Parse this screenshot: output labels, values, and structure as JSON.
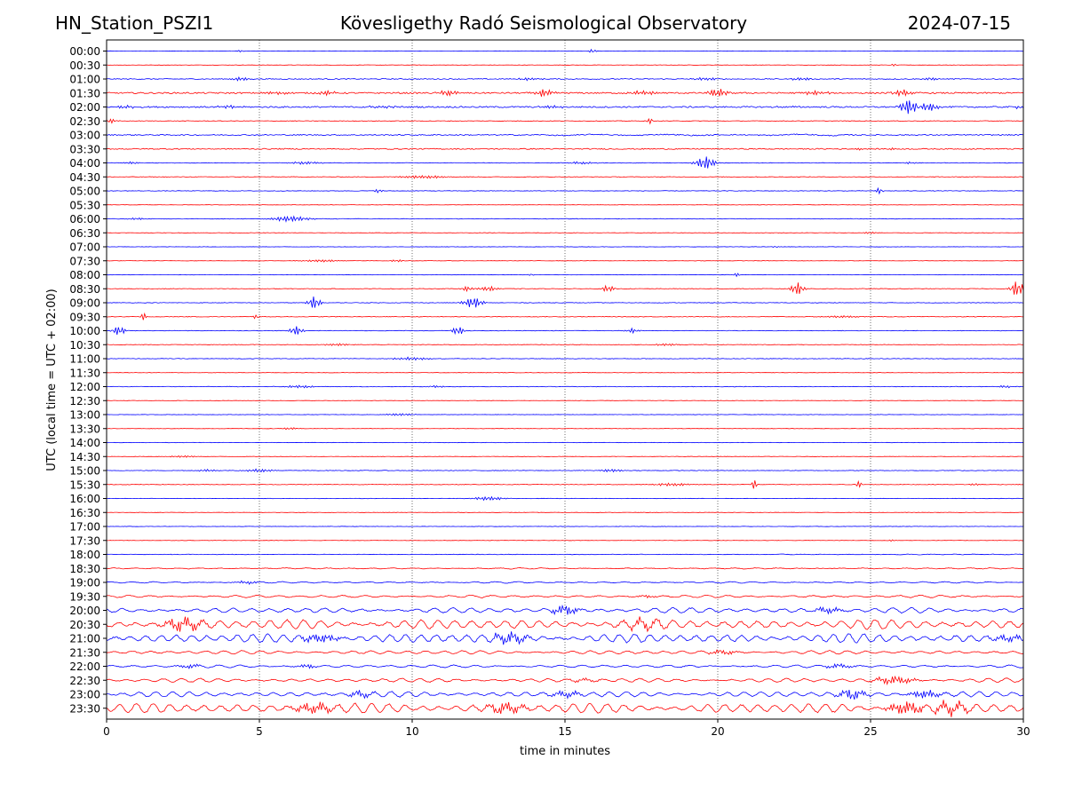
{
  "header": {
    "station": "HN_Station_PSZI1",
    "observatory": "Kövesligethy Radó Seismological Observatory",
    "date": "2024-07-15"
  },
  "chart_data": {
    "type": "line",
    "title": "Kövesligethy Radó Seismological Observatory",
    "xlabel": "time in minutes",
    "ylabel": "UTC (local time = UTC + 02:00)",
    "xlim": [
      0,
      30
    ],
    "x_ticks": [
      "0",
      "5",
      "10",
      "15",
      "20",
      "25",
      "30"
    ],
    "x_gridlines": [
      5,
      10,
      15,
      20,
      25
    ],
    "grid": "vertical dotted",
    "series_colors": [
      "#0000ff",
      "#ff0000"
    ],
    "rows": [
      {
        "label": "00:00",
        "noise": 0.2,
        "events": [
          [
            4.4,
            1.2,
            0.1
          ],
          [
            15.9,
            2.5,
            0.1
          ]
        ]
      },
      {
        "label": "00:30",
        "noise": 0.2,
        "events": [
          [
            25.8,
            1.5,
            0.1
          ]
        ]
      },
      {
        "label": "01:00",
        "noise": 0.5,
        "events": [
          [
            4.4,
            2.0,
            0.3
          ],
          [
            13.8,
            1.2,
            0.4
          ],
          [
            19.6,
            1.5,
            0.4
          ],
          [
            22.7,
            1.5,
            0.3
          ],
          [
            27.0,
            1.6,
            0.3
          ]
        ]
      },
      {
        "label": "01:30",
        "noise": 0.8,
        "events": [
          [
            5.5,
            1.5,
            0.4
          ],
          [
            7.2,
            2.0,
            0.3
          ],
          [
            11.2,
            3.0,
            0.3
          ],
          [
            14.3,
            4.0,
            0.3
          ],
          [
            17.5,
            2.0,
            0.5
          ],
          [
            20.0,
            4.5,
            0.3
          ],
          [
            23.2,
            2.0,
            0.4
          ],
          [
            26.1,
            3.5,
            0.3
          ]
        ]
      },
      {
        "label": "02:00",
        "noise": 0.8,
        "events": [
          [
            0.6,
            1.5,
            0.4
          ],
          [
            4.0,
            1.5,
            0.4
          ],
          [
            9.0,
            1.2,
            0.5
          ],
          [
            14.6,
            2.0,
            0.3
          ],
          [
            22.2,
            1.2,
            0.4
          ],
          [
            26.3,
            9.0,
            0.3
          ],
          [
            26.8,
            5.0,
            0.4
          ],
          [
            29.9,
            2.0,
            0.2
          ]
        ]
      },
      {
        "label": "02:30",
        "noise": 0.3,
        "events": [
          [
            0.1,
            2.5,
            0.2
          ],
          [
            17.8,
            3.5,
            0.1
          ]
        ]
      },
      {
        "label": "03:00",
        "noise": 0.6,
        "wave": [
          0.8,
          2.2,
          14.0,
          24.0
        ],
        "events": []
      },
      {
        "label": "03:30",
        "noise": 0.6,
        "events": [
          [
            24.6,
            1.5,
            0.1
          ],
          [
            25.7,
            1.5,
            0.1
          ]
        ]
      },
      {
        "label": "04:00",
        "noise": 0.3,
        "events": [
          [
            0.8,
            1.0,
            0.3
          ],
          [
            6.5,
            1.5,
            0.5
          ],
          [
            15.5,
            1.2,
            0.5
          ],
          [
            19.6,
            7.0,
            0.3
          ],
          [
            26.3,
            1.2,
            0.2
          ]
        ]
      },
      {
        "label": "04:30",
        "noise": 0.3,
        "events": [
          [
            10.4,
            1.5,
            0.8
          ]
        ]
      },
      {
        "label": "05:00",
        "noise": 0.3,
        "events": [
          [
            8.9,
            3.0,
            0.1
          ],
          [
            25.3,
            4.0,
            0.1
          ]
        ]
      },
      {
        "label": "05:30",
        "noise": 0.2,
        "events": []
      },
      {
        "label": "06:00",
        "noise": 0.3,
        "events": [
          [
            1.0,
            1.0,
            0.3
          ],
          [
            6.0,
            3.0,
            0.6
          ]
        ]
      },
      {
        "label": "06:30",
        "noise": 0.2,
        "events": [
          [
            25.0,
            1.2,
            0.2
          ]
        ]
      },
      {
        "label": "07:00",
        "noise": 0.2,
        "events": [
          [
            21.9,
            1.0,
            0.1
          ]
        ]
      },
      {
        "label": "07:30",
        "noise": 0.2,
        "events": [
          [
            7.0,
            1.2,
            0.6
          ],
          [
            9.5,
            1.2,
            0.2
          ]
        ]
      },
      {
        "label": "08:00",
        "noise": 0.2,
        "events": [
          [
            13.9,
            1.5,
            0.1
          ],
          [
            20.6,
            2.0,
            0.1
          ]
        ]
      },
      {
        "label": "08:30",
        "noise": 0.3,
        "events": [
          [
            11.8,
            2.5,
            0.2
          ],
          [
            12.5,
            2.5,
            0.3
          ],
          [
            16.4,
            3.5,
            0.2
          ],
          [
            22.6,
            7.0,
            0.2
          ],
          [
            29.8,
            9.0,
            0.2
          ]
        ]
      },
      {
        "label": "09:00",
        "noise": 0.3,
        "events": [
          [
            6.8,
            7.0,
            0.2
          ],
          [
            12.0,
            6.0,
            0.3
          ]
        ]
      },
      {
        "label": "09:30",
        "noise": 0.3,
        "events": [
          [
            1.2,
            4.0,
            0.1
          ],
          [
            4.9,
            2.5,
            0.1
          ],
          [
            24.0,
            1.2,
            0.5
          ]
        ]
      },
      {
        "label": "10:00",
        "noise": 0.3,
        "events": [
          [
            0.4,
            5.0,
            0.2
          ],
          [
            6.2,
            5.0,
            0.2
          ],
          [
            11.5,
            4.5,
            0.2
          ],
          [
            17.2,
            2.5,
            0.2
          ]
        ]
      },
      {
        "label": "10:30",
        "noise": 0.3,
        "events": [
          [
            7.5,
            1.2,
            0.4
          ],
          [
            18.3,
            1.2,
            0.4
          ]
        ]
      },
      {
        "label": "11:00",
        "noise": 0.3,
        "events": [
          [
            10.0,
            1.5,
            0.6
          ]
        ]
      },
      {
        "label": "11:30",
        "noise": 0.2,
        "events": []
      },
      {
        "label": "12:00",
        "noise": 0.3,
        "events": [
          [
            6.3,
            1.5,
            0.5
          ],
          [
            10.8,
            1.2,
            0.3
          ],
          [
            29.4,
            1.5,
            0.2
          ]
        ]
      },
      {
        "label": "12:30",
        "noise": 0.2,
        "events": []
      },
      {
        "label": "13:00",
        "noise": 0.2,
        "events": [
          [
            9.6,
            1.2,
            0.5
          ]
        ]
      },
      {
        "label": "13:30",
        "noise": 0.2,
        "events": [
          [
            6.0,
            1.0,
            0.3
          ]
        ]
      },
      {
        "label": "14:00",
        "noise": 0.2,
        "events": []
      },
      {
        "label": "14:30",
        "noise": 0.2,
        "events": [
          [
            2.5,
            1.0,
            0.5
          ]
        ]
      },
      {
        "label": "15:00",
        "noise": 0.3,
        "events": [
          [
            3.3,
            1.2,
            0.3
          ],
          [
            5.0,
            1.5,
            0.5
          ],
          [
            16.5,
            1.5,
            0.4
          ]
        ]
      },
      {
        "label": "15:30",
        "noise": 0.3,
        "events": [
          [
            18.5,
            1.5,
            0.6
          ],
          [
            21.2,
            5.0,
            0.1
          ],
          [
            24.6,
            3.5,
            0.1
          ],
          [
            28.4,
            1.8,
            0.1
          ]
        ]
      },
      {
        "label": "16:00",
        "noise": 0.2,
        "events": [
          [
            12.5,
            2.0,
            0.5
          ]
        ]
      },
      {
        "label": "16:30",
        "noise": 0.2,
        "events": []
      },
      {
        "label": "17:00",
        "noise": 0.2,
        "events": []
      },
      {
        "label": "17:30",
        "noise": 0.2,
        "events": [
          [
            25.7,
            1.0,
            0.1
          ]
        ]
      },
      {
        "label": "18:00",
        "noise": 0.3,
        "wave": [
          0.3,
          0.7,
          22.0,
          30.0
        ],
        "events": []
      },
      {
        "label": "18:30",
        "noise": 0.3,
        "wave": [
          0.6,
          0.7,
          0.0,
          30.0
        ],
        "events": []
      },
      {
        "label": "19:00",
        "noise": 0.3,
        "wave": [
          0.8,
          0.7,
          0.0,
          30.0
        ],
        "events": [
          [
            4.6,
            1.5,
            0.4
          ]
        ]
      },
      {
        "label": "19:30",
        "noise": 0.4,
        "wave": [
          1.4,
          0.7,
          0.0,
          30.0
        ],
        "events": [
          [
            17.7,
            1.5,
            0.3
          ]
        ]
      },
      {
        "label": "20:00",
        "noise": 0.6,
        "wave": [
          2.8,
          0.6,
          0.0,
          30.0
        ],
        "events": [
          [
            15.0,
            5.0,
            0.4
          ],
          [
            23.6,
            3.0,
            0.4
          ]
        ]
      },
      {
        "label": "20:30",
        "noise": 0.8,
        "wave": [
          5.5,
          0.55,
          0.0,
          30.0
        ],
        "events": [
          [
            2.5,
            6.0,
            0.6
          ],
          [
            17.6,
            4.0,
            0.6
          ]
        ]
      },
      {
        "label": "21:00",
        "noise": 0.8,
        "wave": [
          5.0,
          0.5,
          0.0,
          30.0
        ],
        "events": [
          [
            7.0,
            4.0,
            0.6
          ],
          [
            13.2,
            5.0,
            0.6
          ],
          [
            29.5,
            3.0,
            0.5
          ]
        ]
      },
      {
        "label": "21:30",
        "noise": 0.4,
        "wave": [
          2.0,
          0.6,
          0.0,
          30.0
        ],
        "events": [
          [
            20.2,
            2.0,
            0.5
          ]
        ]
      },
      {
        "label": "22:00",
        "noise": 0.4,
        "wave": [
          1.5,
          0.7,
          0.0,
          30.0
        ],
        "events": [
          [
            2.7,
            2.0,
            0.4
          ],
          [
            6.6,
            2.0,
            0.3
          ],
          [
            24.0,
            2.0,
            0.5
          ]
        ]
      },
      {
        "label": "22:30",
        "noise": 0.4,
        "wave": [
          2.2,
          0.6,
          0.0,
          30.0
        ],
        "events": [
          [
            15.6,
            1.5,
            0.5
          ],
          [
            25.8,
            4.0,
            0.6
          ]
        ]
      },
      {
        "label": "23:00",
        "noise": 0.5,
        "wave": [
          3.0,
          0.55,
          0.0,
          30.0
        ],
        "events": [
          [
            8.3,
            3.0,
            0.4
          ],
          [
            15.0,
            3.0,
            0.5
          ],
          [
            24.4,
            5.0,
            0.4
          ],
          [
            26.8,
            4.0,
            0.5
          ]
        ]
      },
      {
        "label": "23:30",
        "noise": 0.8,
        "wave": [
          5.5,
          0.55,
          0.0,
          30.0
        ],
        "events": [
          [
            6.8,
            5.0,
            0.6
          ],
          [
            13.1,
            5.0,
            0.6
          ],
          [
            26.2,
            6.0,
            0.6
          ],
          [
            27.6,
            5.0,
            0.6
          ]
        ]
      }
    ]
  }
}
